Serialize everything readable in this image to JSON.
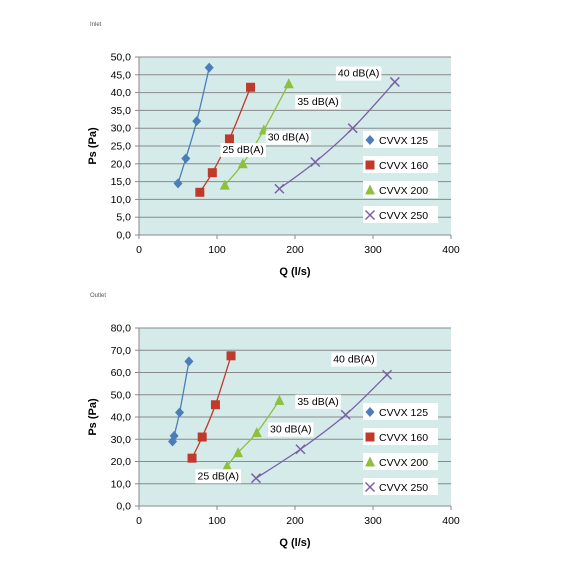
{
  "captions": [
    "Inlet",
    "Outlet"
  ],
  "chart_data": [
    {
      "type": "scatter",
      "xlabel": "Q (l/s)",
      "ylabel": "Ps (Pa)",
      "xlim": [
        0,
        400
      ],
      "ylim": [
        0,
        50
      ],
      "xticks": [
        "0",
        "100",
        "200",
        "300",
        "400"
      ],
      "yticks": [
        "0,0",
        "5,0",
        "10,0",
        "15,0",
        "20,0",
        "25,0",
        "30,0",
        "35,0",
        "40,0",
        "45,0",
        "50,0"
      ],
      "grid": "horizontal",
      "legend": "right",
      "series": [
        {
          "name": "CVVX 125",
          "marker": "diamond",
          "color": "#4a7ebb",
          "points": [
            [
              50,
              14.5
            ],
            [
              60,
              21.5
            ],
            [
              74,
              32
            ],
            [
              90,
              47
            ]
          ]
        },
        {
          "name": "CVVX 160",
          "marker": "square",
          "color": "#c0392b",
          "points": [
            [
              78,
              12
            ],
            [
              94,
              17.5
            ],
            [
              116,
              27
            ],
            [
              143,
              41.5
            ]
          ]
        },
        {
          "name": "CVVX 200",
          "marker": "triangle",
          "color": "#8ebf3f",
          "points": [
            [
              110,
              14
            ],
            [
              133,
              20
            ],
            [
              160,
              29.5
            ],
            [
              192,
              42.5
            ]
          ]
        },
        {
          "name": "CVVX 250",
          "marker": "x",
          "color": "#7b60a8",
          "points": [
            [
              180,
              13
            ],
            [
              226,
              20.5
            ],
            [
              274,
              30
            ],
            [
              328,
              43
            ]
          ]
        }
      ],
      "annotations": [
        {
          "text": "25 dB(A)",
          "x": 107,
          "y": 23
        },
        {
          "text": "30 dB(A)",
          "x": 165,
          "y": 26.5
        },
        {
          "text": "35 dB(A)",
          "x": 203,
          "y": 36.5
        },
        {
          "text": "40 dB(A)",
          "x": 255,
          "y": 44.5
        }
      ]
    },
    {
      "type": "scatter",
      "xlabel": "Q (l/s)",
      "ylabel": "Ps (Pa)",
      "xlim": [
        0,
        400
      ],
      "ylim": [
        0,
        80
      ],
      "xticks": [
        "0",
        "100",
        "200",
        "300",
        "400"
      ],
      "yticks": [
        "0,0",
        "10,0",
        "20,0",
        "30,0",
        "40,0",
        "50,0",
        "60,0",
        "70,0",
        "80,0"
      ],
      "grid": "horizontal",
      "legend": "right",
      "series": [
        {
          "name": "CVVX 125",
          "marker": "diamond",
          "color": "#4a7ebb",
          "points": [
            [
              43,
              29
            ],
            [
              45,
              31.5
            ],
            [
              52,
              42
            ],
            [
              64,
              65
            ]
          ]
        },
        {
          "name": "CVVX 160",
          "marker": "square",
          "color": "#c0392b",
          "points": [
            [
              68,
              21.5
            ],
            [
              81,
              31
            ],
            [
              98,
              45.5
            ],
            [
              118,
              67.5
            ]
          ]
        },
        {
          "name": "CVVX 200",
          "marker": "triangle",
          "color": "#8ebf3f",
          "points": [
            [
              113,
              18
            ],
            [
              127,
              24
            ],
            [
              151,
              33
            ],
            [
              180,
              47.5
            ]
          ]
        },
        {
          "name": "CVVX 250",
          "marker": "x",
          "color": "#7b60a8",
          "points": [
            [
              150,
              12.5
            ],
            [
              207,
              25.5
            ],
            [
              265,
              41
            ],
            [
              318,
              59
            ]
          ]
        }
      ],
      "annotations": [
        {
          "text": "25 dB(A)",
          "x": 75,
          "y": 12
        },
        {
          "text": "30 dB(A)",
          "x": 168,
          "y": 33
        },
        {
          "text": "35 dB(A)",
          "x": 203,
          "y": 45.5
        },
        {
          "text": "40 dB(A)",
          "x": 249,
          "y": 64.5
        }
      ]
    }
  ]
}
